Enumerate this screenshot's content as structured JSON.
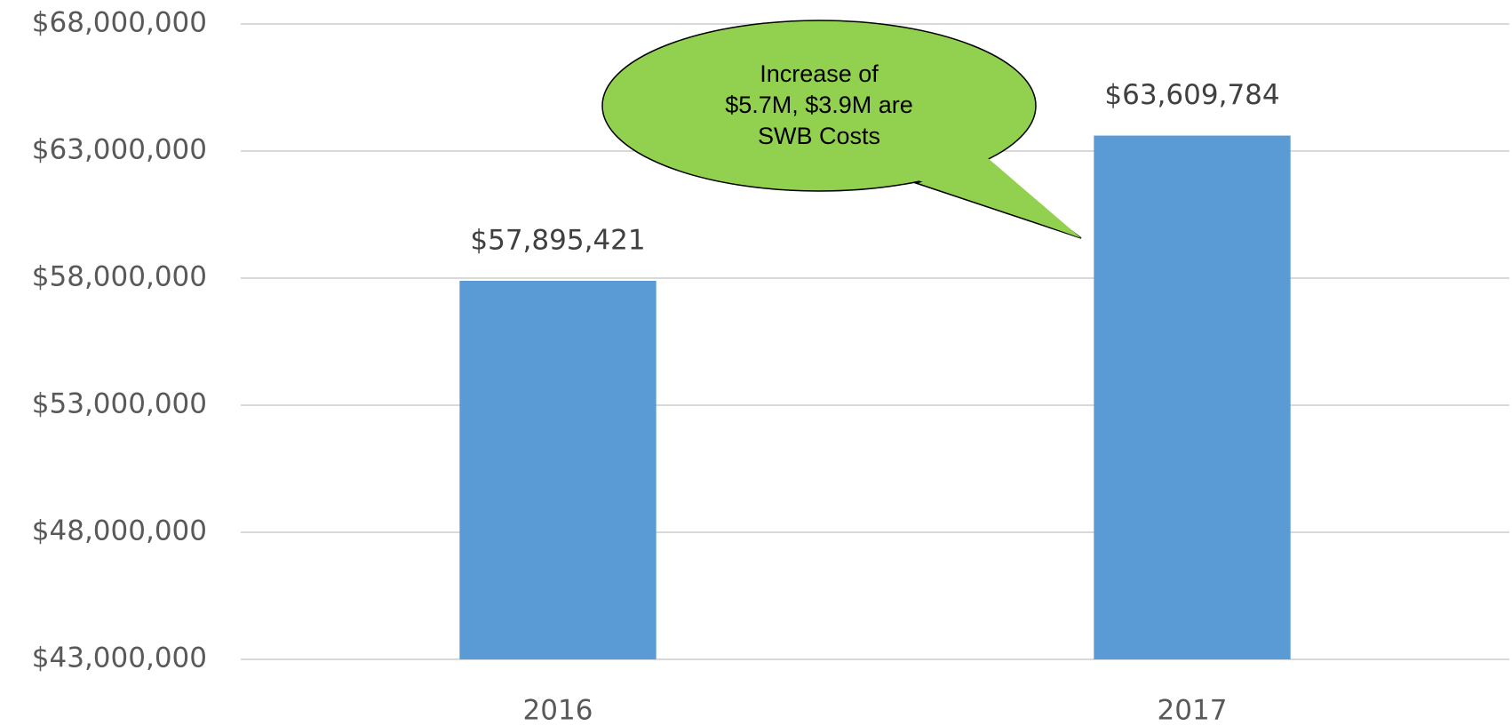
{
  "chart_data": {
    "type": "bar",
    "categories": [
      "2016",
      "2017"
    ],
    "values": [
      57895421,
      63609784
    ],
    "value_labels": [
      "$57,895,421",
      "$63,609,784"
    ],
    "color": "#5b9bd5",
    "ylim": [
      43000000,
      68000000
    ],
    "yticks": [
      {
        "value": 43000000,
        "label": "$43,000,000"
      },
      {
        "value": 48000000,
        "label": "$48,000,000"
      },
      {
        "value": 53000000,
        "label": "$53,000,000"
      },
      {
        "value": 58000000,
        "label": "$58,000,000"
      },
      {
        "value": 63000000,
        "label": "$63,000,000"
      },
      {
        "value": 68000000,
        "label": "$68,000,000"
      }
    ],
    "grid": true,
    "annotation": [
      "Increase of",
      "$5.7M, $3.9M are",
      "SWB Costs"
    ]
  }
}
